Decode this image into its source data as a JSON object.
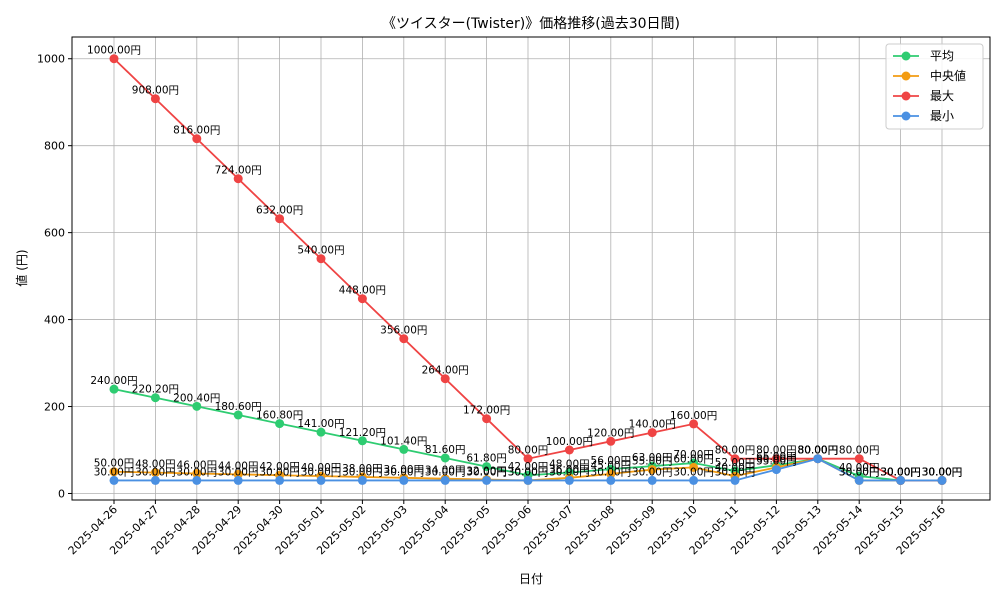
{
  "chart_data": {
    "type": "line",
    "title": "《ツイスター(Twister)》価格推移(過去30日間)",
    "xlabel": "日付",
    "ylabel": "値 (円)",
    "ylim": [
      -15,
      1050
    ],
    "yticks": [
      0,
      200,
      400,
      600,
      800,
      1000
    ],
    "grid": true,
    "legend_position": "top-right",
    "label_suffix": "円",
    "categories": [
      "2025-04-26",
      "2025-04-27",
      "2025-04-28",
      "2025-04-29",
      "2025-04-30",
      "2025-05-01",
      "2025-05-02",
      "2025-05-03",
      "2025-05-04",
      "2025-05-05",
      "2025-05-06",
      "2025-05-07",
      "2025-05-08",
      "2025-05-09",
      "2025-05-10",
      "2025-05-11",
      "2025-05-12",
      "2025-05-13",
      "2025-05-14",
      "2025-05-15",
      "2025-05-16"
    ],
    "series": [
      {
        "name": "平均",
        "color": "#2ecc71",
        "values": [
          240,
          220.2,
          200.4,
          180.6,
          160.8,
          141,
          121.2,
          101.4,
          81.6,
          61.8,
          42,
          48,
          56,
          63,
          70,
          52,
          65,
          80,
          40,
          30,
          30
        ]
      },
      {
        "name": "中央値",
        "color": "#f39c12",
        "values": [
          50,
          48,
          46,
          44,
          42,
          40,
          38,
          36,
          34,
          32,
          30,
          36,
          45,
          55,
          60,
          40,
          60,
          80,
          30,
          30,
          30
        ]
      },
      {
        "name": "最大",
        "color": "#ef4444",
        "values": [
          1000,
          908,
          816,
          724,
          632,
          540,
          448,
          356,
          264,
          172,
          80,
          100,
          120,
          140,
          160,
          80,
          80,
          80,
          80,
          30,
          30
        ]
      },
      {
        "name": "最小",
        "color": "#4a90e2",
        "values": [
          30,
          30,
          30,
          30,
          30,
          30,
          30,
          30,
          30,
          30,
          30,
          30,
          30,
          30,
          30,
          30,
          55,
          80,
          30,
          30,
          30
        ]
      }
    ]
  }
}
